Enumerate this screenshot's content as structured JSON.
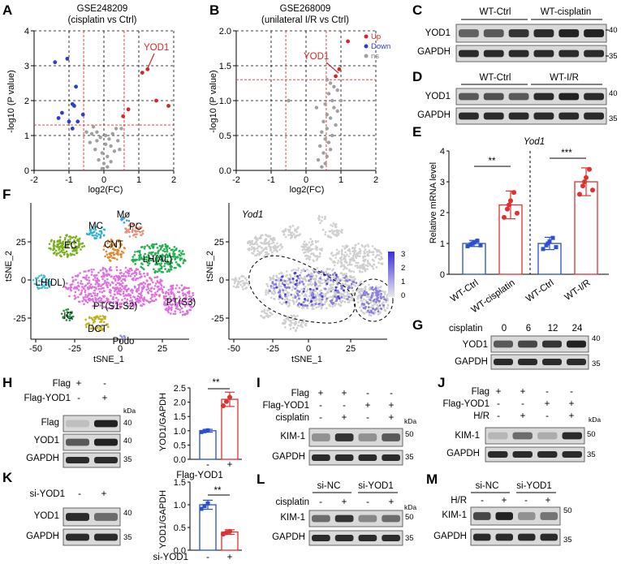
{
  "panels": {
    "A": "A",
    "B": "B",
    "C": "C",
    "D": "D",
    "E": "E",
    "F": "F",
    "G": "G",
    "H": "H",
    "I": "I",
    "J": "J",
    "K": "K",
    "L": "L",
    "M": "M"
  },
  "volcanoA": {
    "title1": "GSE248209",
    "title2": "(cisplatin vs Ctrl)",
    "ylabel": "-log10 (P value)",
    "xlabel": "log2(FC)",
    "gene": "YOD1",
    "xticks": [
      "-2",
      "-1",
      "0",
      "1",
      "2"
    ],
    "yticks": [
      "0",
      "1",
      "2",
      "3",
      "4"
    ],
    "up": [
      [
        1.1,
        2.8
      ],
      [
        1.25,
        2.9
      ],
      [
        1.5,
        2.0
      ],
      [
        1.85,
        1.85
      ],
      [
        0.55,
        1.55
      ],
      [
        0.7,
        1.75
      ]
    ],
    "down": [
      [
        -1.4,
        3.1
      ],
      [
        -1.05,
        3.2
      ],
      [
        -1.2,
        1.65
      ],
      [
        -1.3,
        1.5
      ],
      [
        -0.8,
        2.4
      ],
      [
        -0.9,
        1.9
      ],
      [
        -0.85,
        1.85
      ],
      [
        -0.6,
        1.6
      ],
      [
        -1.0,
        1.4
      ],
      [
        -0.75,
        1.4
      ],
      [
        -0.9,
        1.2
      ]
    ],
    "ns": [
      [
        -0.3,
        1.25
      ],
      [
        -0.2,
        1.1
      ],
      [
        -0.1,
        0.95
      ],
      [
        0.05,
        1.0
      ],
      [
        0.15,
        0.9
      ],
      [
        0.25,
        1.05
      ],
      [
        0.35,
        1.2
      ],
      [
        -0.4,
        0.8
      ],
      [
        -0.25,
        0.6
      ],
      [
        -0.05,
        0.5
      ],
      [
        0.1,
        0.4
      ],
      [
        0.2,
        0.7
      ],
      [
        0.3,
        0.55
      ],
      [
        0.4,
        0.85
      ],
      [
        -0.15,
        0.3
      ],
      [
        0,
        0.2
      ],
      [
        0.1,
        0.1
      ],
      [
        -0.05,
        0.05
      ],
      [
        0.2,
        0.25
      ],
      [
        0.45,
        0.6
      ],
      [
        -0.35,
        1.05
      ],
      [
        0.5,
        1.2
      ],
      [
        -0.5,
        1.1
      ],
      [
        0.05,
        0.75
      ],
      [
        -0.2,
        0.85
      ]
    ]
  },
  "volcanoB": {
    "title1": "GSE268009",
    "title2": "(unilateral I/R vs Ctrl)",
    "ylabel": "-log10 (P value)",
    "xlabel": "log2(FC)",
    "gene": "YOD1",
    "legend": {
      "up": "Up",
      "down": "Down",
      "ns": "ns"
    },
    "xticks": [
      "-2",
      "-1",
      "0",
      "1",
      "2"
    ],
    "yticks": [
      "0.0",
      "0.5",
      "1.0",
      "1.5",
      "2.0"
    ],
    "up": [
      [
        1.2,
        1.85
      ],
      [
        0.95,
        1.45
      ],
      [
        0.85,
        1.35
      ]
    ],
    "down": [],
    "ns": [
      [
        0.6,
        1.3
      ],
      [
        0.7,
        1.25
      ],
      [
        0.8,
        1.2
      ],
      [
        0.9,
        1.15
      ],
      [
        0.65,
        1.1
      ],
      [
        0.75,
        1.0
      ],
      [
        0.55,
        0.95
      ],
      [
        0.8,
        0.9
      ],
      [
        0.6,
        0.8
      ],
      [
        0.7,
        0.75
      ],
      [
        0.5,
        0.7
      ],
      [
        0.85,
        0.65
      ],
      [
        0.6,
        0.6
      ],
      [
        0.45,
        0.55
      ],
      [
        0.75,
        0.5
      ],
      [
        0.55,
        0.45
      ],
      [
        0.65,
        0.4
      ],
      [
        0.4,
        0.35
      ],
      [
        0.7,
        0.3
      ],
      [
        0.5,
        0.25
      ],
      [
        0.6,
        0.2
      ],
      [
        0.35,
        0.15
      ],
      [
        0.55,
        0.1
      ],
      [
        0.45,
        0.05
      ],
      [
        -0.5,
        1.0
      ],
      [
        0.3,
        0.9
      ],
      [
        1.0,
        1.0
      ],
      [
        0.9,
        0.85
      ]
    ]
  },
  "blotC": {
    "g1": "WT-Ctrl",
    "g2": "WT-cisplatin",
    "r1": "YOD1",
    "r2": "GAPDH",
    "m1": "40",
    "m2": "35"
  },
  "blotD": {
    "g1": "WT-Ctrl",
    "g2": "WT-I/R",
    "r1": "YOD1",
    "r2": "GAPDH",
    "m1": "40",
    "m2": "35"
  },
  "chartE": {
    "title": "Yod1",
    "ylabel": "Relative mRNA level",
    "yticks": [
      "0",
      "1",
      "2",
      "3",
      "4"
    ],
    "sig1": "**",
    "sig2": "***"
  },
  "chart_data": [
    {
      "type": "bar",
      "title": "Yod1",
      "ylabel": "Relative mRNA level",
      "ylim": [
        0,
        4
      ],
      "categories": [
        "WT-Ctrl",
        "WT-cisplatin",
        "WT-Ctrl",
        "WT-I/R"
      ],
      "values": [
        1.0,
        2.25,
        1.0,
        3.0
      ],
      "errors": [
        0.1,
        0.45,
        0.2,
        0.45
      ],
      "colors": [
        "#2a4fd0",
        "#e03030",
        "#2a4fd0",
        "#e03030"
      ]
    },
    {
      "type": "bar",
      "ylabel": "YOD1/GAPDH",
      "ylim": [
        0,
        2.5
      ],
      "categories": [
        "-",
        "+"
      ],
      "xlabel": "Flag-YOD1",
      "values": [
        1.0,
        2.1
      ],
      "errors": [
        0.05,
        0.25
      ],
      "colors": [
        "#2a4fd0",
        "#e03030"
      ]
    },
    {
      "type": "bar",
      "ylabel": "YOD1/GAPDH",
      "ylim": [
        0,
        1.5
      ],
      "categories": [
        "-",
        "+"
      ],
      "xlabel": "si-YOD1",
      "values": [
        1.0,
        0.4
      ],
      "errors": [
        0.1,
        0.05
      ],
      "colors": [
        "#2a4fd0",
        "#e03030"
      ]
    }
  ],
  "tsne": {
    "xlabel": "tSNE_1",
    "ylabel": "tSNE_2",
    "xticks": [
      "-50",
      "-25",
      "0",
      "25"
    ],
    "yticks": [
      "-25",
      "0",
      "25"
    ],
    "gene": "Yod1",
    "scale": [
      "3",
      "2",
      "1",
      "0"
    ],
    "clusters": [
      "Mø",
      "MC",
      "PC",
      "EC",
      "CNT",
      "LH(AL)",
      "LH(DL)",
      "PT(S1-S2)",
      "PT(S3)",
      "IC",
      "DCT",
      "Podo"
    ]
  },
  "blotG": {
    "label": "cisplatin",
    "times": [
      "0",
      "6",
      "12",
      "24"
    ],
    "r1": "YOD1",
    "r2": "GAPDH",
    "m1": "40",
    "m2": "35"
  },
  "blotH": {
    "c1": "Flag",
    "c2": "Flag-YOD1",
    "v1": [
      "+",
      "-"
    ],
    "v2": [
      "-",
      "+"
    ],
    "r1": "Flag",
    "r2": "YOD1",
    "r3": "GAPDH",
    "m1": "40",
    "m2": "40",
    "m3": "35",
    "kda": "kDa",
    "ylabel": "YOD1/GAPDH",
    "yticks": [
      "0.0",
      "0.5",
      "1.0",
      "1.5",
      "2.0",
      "2.5"
    ],
    "sig": "**",
    "xl": "Flag-YOD1",
    "xv": [
      "-",
      "+"
    ]
  },
  "blotI": {
    "c1": "Flag",
    "c2": "Flag-YOD1",
    "c3": "cisplatin",
    "v1": [
      "+",
      "+",
      "-",
      "-"
    ],
    "v2": [
      "-",
      "-",
      "+",
      "+"
    ],
    "v3": [
      "-",
      "+",
      "-",
      "+"
    ],
    "r1": "KIM-1",
    "r2": "GAPDH",
    "m1": "50",
    "m2": "35",
    "kda": "kDa"
  },
  "blotJ": {
    "c1": "Flag",
    "c2": "Flag-YOD1",
    "c3": "H/R",
    "v1": [
      "+",
      "+",
      "-",
      "-"
    ],
    "v2": [
      "-",
      "-",
      "+",
      "+"
    ],
    "v3": [
      "-",
      "+",
      "-",
      "+"
    ],
    "r1": "KIM-1",
    "r2": "GAPDH",
    "m1": "50",
    "m2": "35",
    "kda": "kDa"
  },
  "blotK": {
    "c1": "si-YOD1",
    "v1": [
      "-",
      "+"
    ],
    "r1": "YOD1",
    "r2": "GAPDH",
    "m1": "40",
    "m2": "35",
    "ylabel": "YOD1/GAPDH",
    "yticks": [
      "0.0",
      "0.5",
      "1.0",
      "1.5"
    ],
    "sig": "**",
    "xl": "si-YOD1",
    "xv": [
      "-",
      "+"
    ]
  },
  "blotL": {
    "g1": "si-NC",
    "g2": "si-YOD1",
    "c1": "cisplatin",
    "v1": [
      "-",
      "+",
      "-",
      "+"
    ],
    "r1": "KIM-1",
    "r2": "GAPDH",
    "m1": "50",
    "m2": "35",
    "kda": "kDa"
  },
  "blotM": {
    "g1": "si-NC",
    "g2": "si-YOD1",
    "c1": "H/R",
    "v1": [
      "-",
      "+",
      "-",
      "+"
    ],
    "r1": "KIM-1",
    "r2": "GAPDH",
    "m1": "50",
    "m2": "35"
  },
  "colors": {
    "up": "#d62728",
    "down": "#2a3fd0",
    "ns": "#a0a0a0",
    "blue": "#2a4fd0",
    "red": "#e03030"
  }
}
